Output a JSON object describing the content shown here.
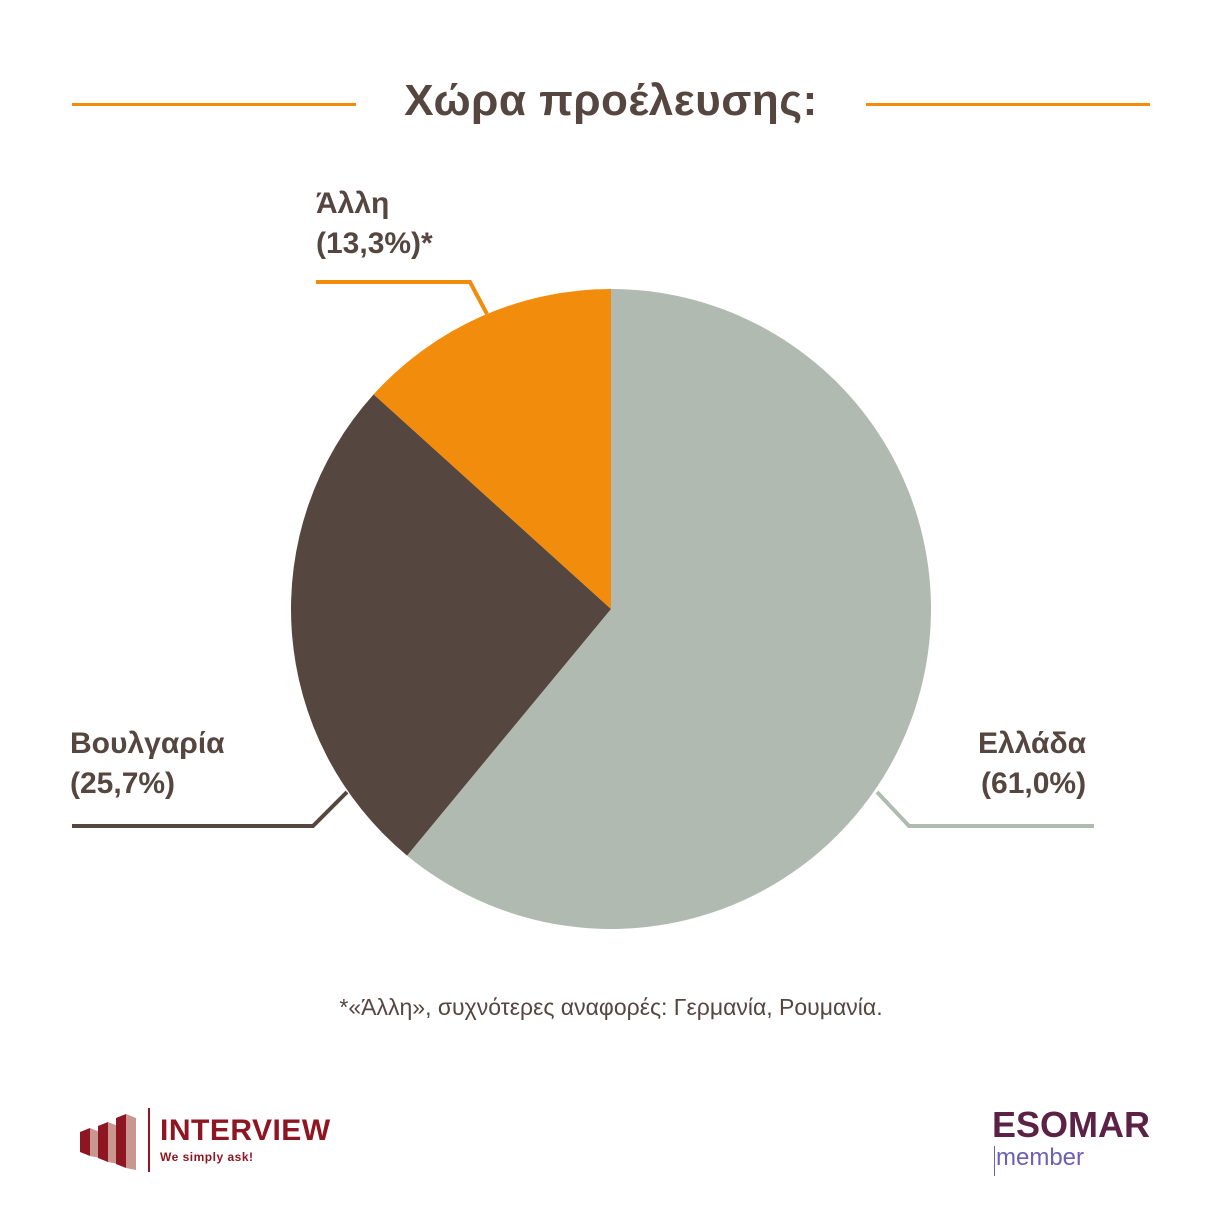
{
  "title": "Χώρα προέλευσης:",
  "colors": {
    "title_rule": "#f28c0d",
    "text": "#55463f"
  },
  "chart_data": {
    "type": "pie",
    "start_angle": "12 o'clock",
    "direction": "clockwise",
    "slices": [
      {
        "label": "Ελλάδα",
        "value": 61.0,
        "value_label": "(61,0%)",
        "color": "#b1bab0"
      },
      {
        "label": "Βουλγαρία",
        "value": 25.7,
        "value_label": "(25,7%)",
        "color": "#55463f"
      },
      {
        "label": "Άλλη",
        "value": 13.3,
        "value_label": "(13,3%)*",
        "color": "#f28c0d"
      }
    ]
  },
  "footnote": "*«Άλλη», συχνότερες αναφορές: Γερμανία, Ρουμανία.",
  "logos": {
    "interview": {
      "name": "INTERVIEW",
      "tagline": "We simply ask!",
      "icon": "bar-chart-buildings-icon",
      "color": "#8e1622"
    },
    "esomar": {
      "name": "ESOMAR",
      "sub": "member",
      "color": "#5b2246",
      "sub_color": "#6b5fb6"
    }
  }
}
